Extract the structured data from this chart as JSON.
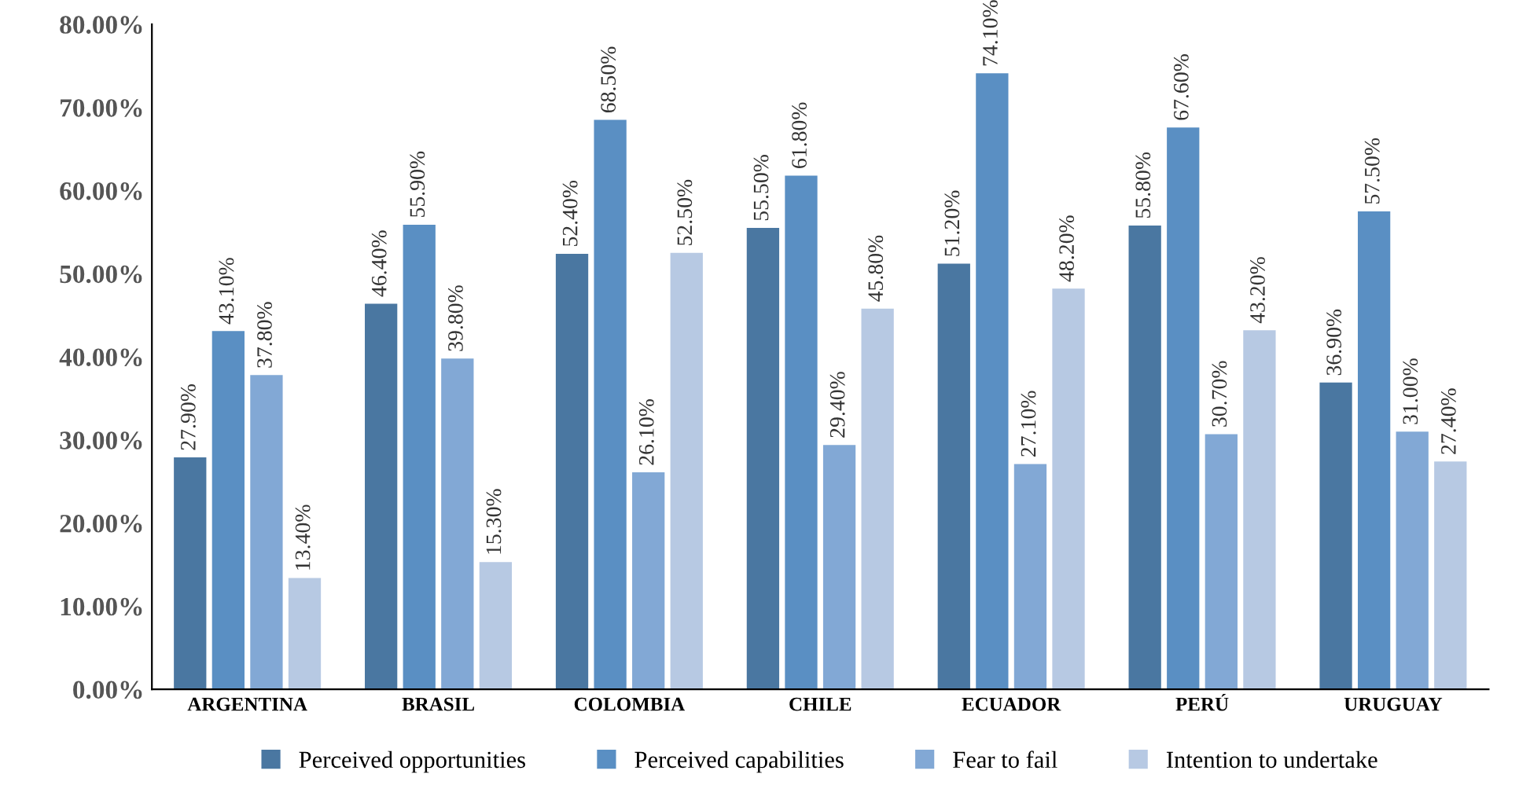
{
  "chart_data": {
    "type": "bar",
    "categories": [
      "ARGENTINA",
      "BRASIL",
      "COLOMBIA",
      "CHILE",
      "ECUADOR",
      "PERÚ",
      "URUGUAY"
    ],
    "series": [
      {
        "name": "Perceived opportunities",
        "color": "#4a77a1",
        "values": [
          27.9,
          46.4,
          52.4,
          55.5,
          51.2,
          55.8,
          36.9
        ],
        "value_labels": [
          "27.90%",
          "46.40%",
          "52.40%",
          "55.50%",
          "51.20%",
          "55.80%",
          "36.90%"
        ]
      },
      {
        "name": "Perceived capabilities",
        "color": "#5a8fc3",
        "values": [
          43.1,
          55.9,
          68.5,
          61.8,
          74.1,
          67.6,
          57.5
        ],
        "value_labels": [
          "43.10%",
          "55.90%",
          "68.50%",
          "61.80%",
          "74.10%",
          "67.60%",
          "57.50%"
        ]
      },
      {
        "name": "Fear to fail",
        "color": "#82a8d5",
        "values": [
          37.8,
          39.8,
          26.1,
          29.4,
          27.1,
          30.7,
          31.0
        ],
        "value_labels": [
          "37.80%",
          "39.80%",
          "26.10%",
          "29.40%",
          "27.10%",
          "30.70%",
          "31.00%"
        ]
      },
      {
        "name": "Intention to undertake",
        "color": "#b7c9e3",
        "values": [
          13.4,
          15.3,
          52.5,
          45.8,
          48.2,
          43.2,
          27.4
        ],
        "value_labels": [
          "13.40%",
          "15.30%",
          "52.50%",
          "45.80%",
          "48.20%",
          "43.20%",
          "27.40%"
        ]
      }
    ],
    "ylim": [
      0,
      80
    ],
    "yticks": [
      {
        "value": 0,
        "label": "0.00%"
      },
      {
        "value": 10,
        "label": "10.00%"
      },
      {
        "value": 20,
        "label": "20.00%"
      },
      {
        "value": 30,
        "label": "30.00%"
      },
      {
        "value": 40,
        "label": "40.00%"
      },
      {
        "value": 50,
        "label": "50.00%"
      },
      {
        "value": 60,
        "label": "60.00%"
      },
      {
        "value": 70,
        "label": "70.00%"
      },
      {
        "value": 80,
        "label": "80.00%"
      }
    ],
    "grid": false,
    "legend": "bottom"
  }
}
